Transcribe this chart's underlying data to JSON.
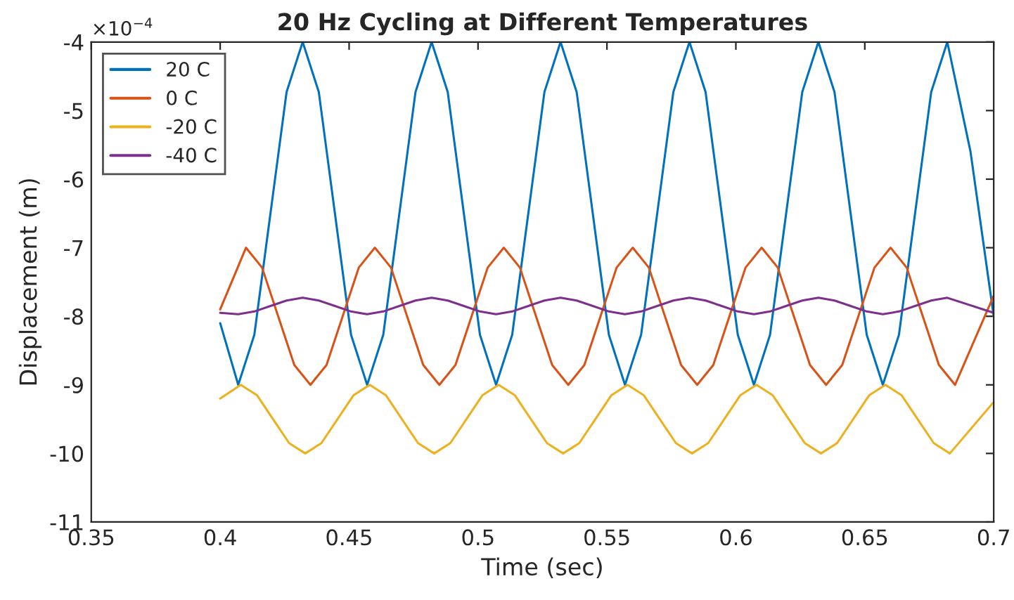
{
  "chart_data": {
    "type": "line",
    "title": "20 Hz Cycling at Different Temperatures",
    "xlabel": "Time (sec)",
    "ylabel": "Displacement (m)",
    "annotations": [
      "×10$^{−4}$"
    ],
    "xlim": [
      0.35,
      0.7
    ],
    "xticks": [
      0.35,
      0.4,
      0.45,
      0.5,
      0.55,
      0.6,
      0.65,
      0.7
    ],
    "ylim": [
      -11,
      -4
    ],
    "yticks": [
      -11,
      -10,
      -9,
      -8,
      -7,
      -6,
      -5,
      -4
    ],
    "grid": false,
    "legend": "top left",
    "line_style": "solid",
    "series": [
      {
        "name": "20 C",
        "color": "#0072bd",
        "x": [
          0.4,
          0.407,
          0.41325,
          0.4195,
          0.42575,
          0.432,
          0.43825,
          0.4445,
          0.45075,
          0.457,
          0.46325,
          0.4695,
          0.47575,
          0.482,
          0.48825,
          0.4945,
          0.50075,
          0.507,
          0.51325,
          0.5195,
          0.52575,
          0.532,
          0.53825,
          0.5445,
          0.55075,
          0.557,
          0.56325,
          0.5695,
          0.57575,
          0.582,
          0.58825,
          0.5945,
          0.60075,
          0.607,
          0.61325,
          0.6195,
          0.62575,
          0.632,
          0.63825,
          0.6445,
          0.65075,
          0.657,
          0.66325,
          0.6695,
          0.67575,
          0.682,
          0.691,
          0.7
        ],
        "values": [
          -8.1,
          -9,
          -8.27,
          -6.5,
          -4.73,
          -4,
          -4.73,
          -6.5,
          -8.27,
          -9,
          -8.27,
          -6.5,
          -4.73,
          -4,
          -4.73,
          -6.5,
          -8.27,
          -9,
          -8.27,
          -6.5,
          -4.73,
          -4,
          -4.73,
          -6.5,
          -8.27,
          -9,
          -8.27,
          -6.5,
          -4.73,
          -4,
          -4.73,
          -6.5,
          -8.27,
          -9,
          -8.27,
          -6.5,
          -4.73,
          -4,
          -4.73,
          -6.5,
          -8.27,
          -9,
          -8.27,
          -6.5,
          -4.73,
          -4,
          -5.6,
          -8.0
        ]
      },
      {
        "name": "0 C",
        "color": "#d95319",
        "x": [
          0.4,
          0.41,
          0.41625,
          0.4225,
          0.42875,
          0.435,
          0.44125,
          0.4475,
          0.45375,
          0.46,
          0.46625,
          0.4725,
          0.47875,
          0.485,
          0.49125,
          0.4975,
          0.50375,
          0.51,
          0.51625,
          0.5225,
          0.52875,
          0.535,
          0.54125,
          0.5475,
          0.55375,
          0.56,
          0.56625,
          0.5725,
          0.57875,
          0.585,
          0.59125,
          0.5975,
          0.60375,
          0.61,
          0.61625,
          0.6225,
          0.62875,
          0.635,
          0.64125,
          0.6475,
          0.65375,
          0.66,
          0.66625,
          0.6725,
          0.67875,
          0.685,
          0.7
        ],
        "values": [
          -7.9,
          -7,
          -7.29,
          -8,
          -8.71,
          -9,
          -8.71,
          -8,
          -7.29,
          -7,
          -7.29,
          -8,
          -8.71,
          -9,
          -8.71,
          -8,
          -7.29,
          -7,
          -7.29,
          -8,
          -8.71,
          -9,
          -8.71,
          -8,
          -7.29,
          -7,
          -7.29,
          -8,
          -8.71,
          -9,
          -8.71,
          -8,
          -7.29,
          -7,
          -7.29,
          -8,
          -8.71,
          -9,
          -8.71,
          -8,
          -7.29,
          -7,
          -7.29,
          -8,
          -8.71,
          -9,
          -7.7
        ]
      },
      {
        "name": "-20 C",
        "color": "#edb120",
        "x": [
          0.4,
          0.408,
          0.41425,
          0.4205,
          0.42675,
          0.433,
          0.43925,
          0.4455,
          0.45175,
          0.458,
          0.46425,
          0.4705,
          0.47675,
          0.483,
          0.48925,
          0.4955,
          0.50175,
          0.508,
          0.51425,
          0.5205,
          0.52675,
          0.533,
          0.53925,
          0.5455,
          0.55175,
          0.558,
          0.56425,
          0.5705,
          0.57675,
          0.583,
          0.58925,
          0.5955,
          0.60175,
          0.608,
          0.61425,
          0.6205,
          0.62675,
          0.633,
          0.63925,
          0.6455,
          0.65175,
          0.658,
          0.66425,
          0.6705,
          0.67675,
          0.683,
          0.7
        ],
        "values": [
          -9.2,
          -9,
          -9.15,
          -9.5,
          -9.85,
          -10,
          -9.85,
          -9.5,
          -9.15,
          -9,
          -9.15,
          -9.5,
          -9.85,
          -10,
          -9.85,
          -9.5,
          -9.15,
          -9,
          -9.15,
          -9.5,
          -9.85,
          -10,
          -9.85,
          -9.5,
          -9.15,
          -9,
          -9.15,
          -9.5,
          -9.85,
          -10,
          -9.85,
          -9.5,
          -9.15,
          -9,
          -9.15,
          -9.5,
          -9.85,
          -10,
          -9.85,
          -9.5,
          -9.15,
          -9,
          -9.15,
          -9.5,
          -9.85,
          -10,
          -9.25
        ]
      },
      {
        "name": "-40 C",
        "color": "#7e2f8e",
        "x": [
          0.4,
          0.407,
          0.41325,
          0.4195,
          0.42575,
          0.432,
          0.43825,
          0.4445,
          0.45075,
          0.457,
          0.46325,
          0.4695,
          0.47575,
          0.482,
          0.48825,
          0.4945,
          0.50075,
          0.507,
          0.51325,
          0.5195,
          0.52575,
          0.532,
          0.53825,
          0.5445,
          0.55075,
          0.557,
          0.56325,
          0.5695,
          0.57575,
          0.582,
          0.58825,
          0.5945,
          0.60075,
          0.607,
          0.61325,
          0.6195,
          0.62575,
          0.632,
          0.63825,
          0.6445,
          0.65075,
          0.657,
          0.66325,
          0.6695,
          0.67575,
          0.682,
          0.7
        ],
        "values": [
          -7.95,
          -7.97,
          -7.93,
          -7.85,
          -7.77,
          -7.73,
          -7.77,
          -7.85,
          -7.93,
          -7.97,
          -7.93,
          -7.85,
          -7.77,
          -7.73,
          -7.77,
          -7.85,
          -7.93,
          -7.97,
          -7.93,
          -7.85,
          -7.77,
          -7.73,
          -7.77,
          -7.85,
          -7.93,
          -7.97,
          -7.93,
          -7.85,
          -7.77,
          -7.73,
          -7.77,
          -7.85,
          -7.93,
          -7.97,
          -7.93,
          -7.85,
          -7.77,
          -7.73,
          -7.77,
          -7.85,
          -7.93,
          -7.97,
          -7.93,
          -7.85,
          -7.77,
          -7.73,
          -7.95
        ]
      }
    ]
  }
}
